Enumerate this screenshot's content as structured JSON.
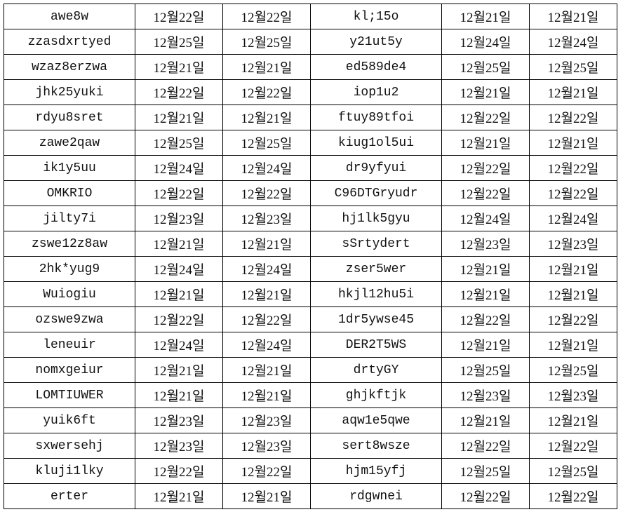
{
  "rows": [
    [
      "awe8w",
      "12월22일",
      "12월22일",
      "kl;15o",
      "12월21일",
      "12월21일"
    ],
    [
      "zzasdxrtyed",
      "12월25일",
      "12월25일",
      "y21ut5y",
      "12월24일",
      "12월24일"
    ],
    [
      "wzaz8erzwa",
      "12월21일",
      "12월21일",
      "ed589de4",
      "12월25일",
      "12월25일"
    ],
    [
      "jhk25yuki",
      "12월22일",
      "12월22일",
      "iop1u2",
      "12월21일",
      "12월21일"
    ],
    [
      "rdyu8sret",
      "12월21일",
      "12월21일",
      "ftuy89tfoi",
      "12월22일",
      "12월22일"
    ],
    [
      "zawe2qaw",
      "12월25일",
      "12월25일",
      "kiug1ol5ui",
      "12월21일",
      "12월21일"
    ],
    [
      "ik1y5uu",
      "12월24일",
      "12월24일",
      "dr9yfyui",
      "12월22일",
      "12월22일"
    ],
    [
      "OMKRIO",
      "12월22일",
      "12월22일",
      "C96DTGryudr",
      "12월22일",
      "12월22일"
    ],
    [
      "jilty7i",
      "12월23일",
      "12월23일",
      "hj1lk5gyu",
      "12월24일",
      "12월24일"
    ],
    [
      "zswe12z8aw",
      "12월21일",
      "12월21일",
      "sSrtydert",
      "12월23일",
      "12월23일"
    ],
    [
      "2hk*yug9",
      "12월24일",
      "12월24일",
      "zser5wer",
      "12월21일",
      "12월21일"
    ],
    [
      "Wuiogiu",
      "12월21일",
      "12월21일",
      "hkjl12hu5i",
      "12월21일",
      "12월21일"
    ],
    [
      "ozswe9zwa",
      "12월22일",
      "12월22일",
      "1dr5ywse45",
      "12월22일",
      "12월22일"
    ],
    [
      "leneuir",
      "12월24일",
      "12월24일",
      "DER2T5WS",
      "12월21일",
      "12월21일"
    ],
    [
      "nomxgeiur",
      "12월21일",
      "12월21일",
      "drtyGY",
      "12월25일",
      "12월25일"
    ],
    [
      "LOMTIUWER",
      "12월21일",
      "12월21일",
      "ghjkftjk",
      "12월23일",
      "12월23일"
    ],
    [
      "yuik6ft",
      "12월23일",
      "12월23일",
      "aqw1e5qwe",
      "12월21일",
      "12월21일"
    ],
    [
      "sxwersehj",
      "12월23일",
      "12월23일",
      "sert8wsze",
      "12월22일",
      "12월22일"
    ],
    [
      "kluji1lky",
      "12월22일",
      "12월22일",
      "hjm15yfj",
      "12월25일",
      "12월25일"
    ],
    [
      "erter",
      "12월21일",
      "12월21일",
      "rdgwnei",
      "12월22일",
      "12월22일"
    ]
  ]
}
